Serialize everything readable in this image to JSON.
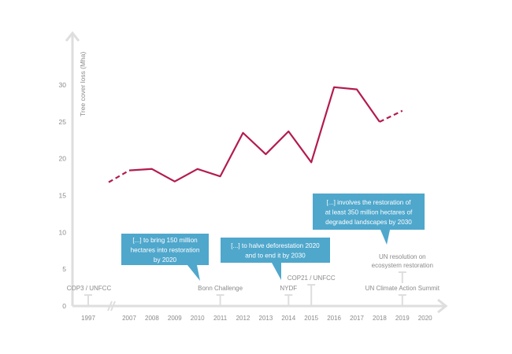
{
  "chart_data": {
    "type": "line",
    "title": "",
    "xlabel": "",
    "ylabel": "Tree cover loss (Mha)",
    "ylim": [
      0,
      30
    ],
    "yticks": [
      0,
      5,
      10,
      15,
      20,
      25,
      30
    ],
    "xtick_labels": [
      "1997",
      "2007",
      "2008",
      "2009",
      "2010",
      "2011",
      "2012",
      "2013",
      "2014",
      "2015",
      "2016",
      "2017",
      "2018",
      "2019",
      "2020"
    ],
    "axis_break_between": [
      "1997",
      "2007"
    ],
    "grid": false,
    "line_color": "#b31b50",
    "series": [
      {
        "x": [
          2007,
          2008,
          2009,
          2010,
          2011,
          2012,
          2013,
          2014,
          2015,
          2016,
          2017,
          2018
        ],
        "values": [
          18.4,
          18.6,
          16.9,
          18.6,
          17.6,
          23.5,
          20.6,
          23.7,
          19.5,
          29.7,
          29.4,
          25.0
        ],
        "style": "solid"
      },
      {
        "x": [
          2006.1,
          2007
        ],
        "values": [
          16.8,
          18.4
        ],
        "style": "dashed"
      },
      {
        "x": [
          2018,
          2019
        ],
        "values": [
          25.0,
          26.5
        ],
        "style": "dashed"
      }
    ],
    "events": [
      {
        "year": 1997,
        "label": [
          "COP3 / UNFCC"
        ]
      },
      {
        "year": 2011,
        "label": [
          "Bonn Challenge"
        ]
      },
      {
        "year": 2014,
        "label": [
          "NYDF"
        ]
      },
      {
        "year": 2015,
        "label": [
          "COP21 / UNFCC"
        ]
      },
      {
        "year": 2019,
        "label": [
          "UN Climate Action Summit"
        ]
      },
      {
        "year": 2019,
        "label": [
          "UN resolution on",
          "ecosystem restoration"
        ]
      }
    ],
    "callouts": [
      {
        "event": "Bonn Challenge",
        "lines": [
          "[...] to bring 150 million",
          "hectares into restoration",
          "by 2020"
        ]
      },
      {
        "event": "NYDF",
        "lines": [
          "[...] to halve deforestation 2020",
          "and to end it by 2030"
        ]
      },
      {
        "event": "UN resolution on ecosystem restoration",
        "lines": [
          "[...] involves the restoration of",
          "at least 350 million hectares of",
          "degraded landscapes by 2030"
        ]
      }
    ],
    "callout_color": "#4fa7cc"
  }
}
